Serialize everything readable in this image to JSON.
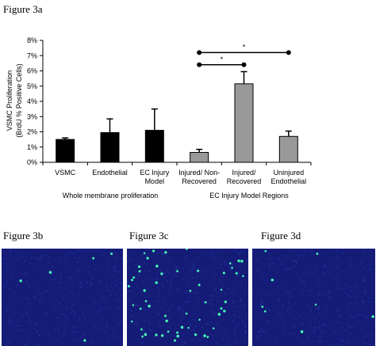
{
  "figure_labels": {
    "fig3a": "Figure 3a",
    "fig3b": "Figure 3b",
    "fig3c": "Figure 3c",
    "fig3d": "Figure 3d"
  },
  "chart_data": {
    "type": "bar",
    "ylabel_line1": "VSMC Proliferation",
    "ylabel_line2": "(BrdU % Positive Cells)",
    "ylim": [
      0,
      8
    ],
    "yticks": [
      "0%",
      "1%",
      "2%",
      "3%",
      "4%",
      "5%",
      "6%",
      "7%",
      "8%"
    ],
    "grid": false,
    "categories": [
      [
        "VSMC"
      ],
      [
        "Endothelial"
      ],
      [
        "EC Injury",
        "Model"
      ],
      [
        "Injured/ Non-",
        "Recovered"
      ],
      [
        "Injured/",
        "Recovered"
      ],
      [
        "Uninjured",
        "Endothelial"
      ]
    ],
    "values": [
      1.5,
      1.95,
      2.1,
      0.65,
      5.15,
      1.7
    ],
    "errors": [
      0.1,
      0.9,
      1.4,
      0.2,
      0.8,
      0.35
    ],
    "bar_colors": [
      "#000000",
      "#000000",
      "#000000",
      "#999999",
      "#999999",
      "#999999"
    ],
    "group_labels": [
      "Whole membrane proliferation",
      "EC Injury Model Regions"
    ],
    "significance": [
      {
        "from": 3,
        "to": 5,
        "y": 7.2,
        "label": "*"
      },
      {
        "from": 3,
        "to": 4,
        "y": 6.4,
        "label": "*"
      }
    ]
  },
  "micrographs": {
    "background_color": "#141c78",
    "nuclei_color": "#46ffb4"
  }
}
